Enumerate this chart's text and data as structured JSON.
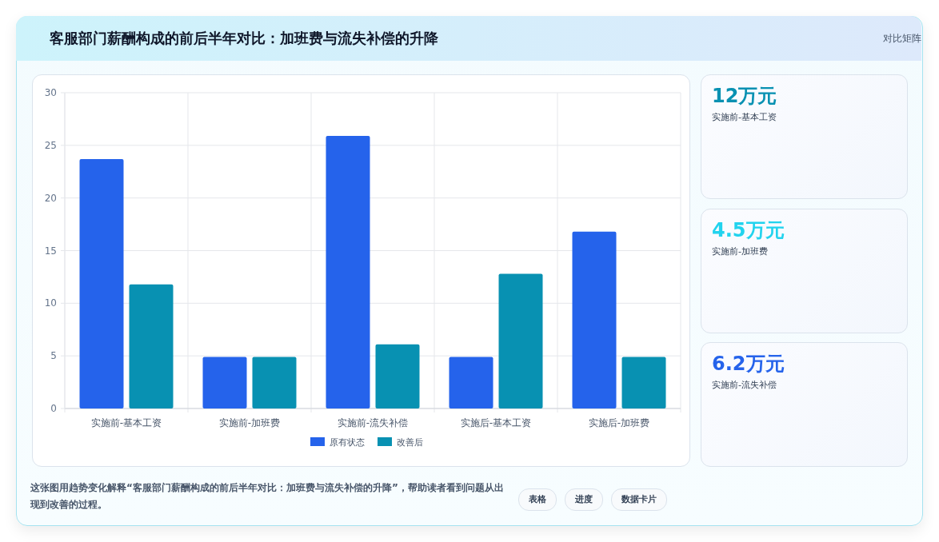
{
  "chart_data": [
    {
      "type": "bar",
      "title": "客服部门薪酬构成的前后半年对比：加班费与流失补偿的升降",
      "categories": [
        "实施前-基本工资",
        "实施前-加班费",
        "实施前-流失补偿",
        "实施后-基本工资",
        "实施后-加班费"
      ],
      "series": [
        {
          "name": "原有状态",
          "color": "#2563eb",
          "values": [
            23.7,
            4.9,
            25.9,
            4.9,
            16.8
          ]
        },
        {
          "name": "改善后",
          "color": "#0891b2",
          "values": [
            11.8,
            4.9,
            6.1,
            12.8,
            4.9
          ]
        }
      ],
      "ylim": [
        0,
        30
      ],
      "yticks": [
        0,
        5,
        10,
        15,
        20,
        25,
        30
      ],
      "grid": true,
      "legend": "bottom",
      "annotations": [
        "这张图用趋势变化解释“客服部门薪酬构成的前后半年对比：加班费与流失补偿的升降”，帮助读者看到问题从出现到改善的过程。",
        "表格",
        "进度",
        "数据卡片"
      ]
    },
    {
      "type": "other",
      "title": "对比矩阵",
      "annotations": [
        "12万元",
        "实施前-基本工资",
        "4.5万元",
        "实施前-加班费",
        "6.2万元",
        "实施前-流失补偿"
      ],
      "colors": [
        "#0891b2",
        "#22d3ee",
        "#2563eb"
      ]
    }
  ]
}
